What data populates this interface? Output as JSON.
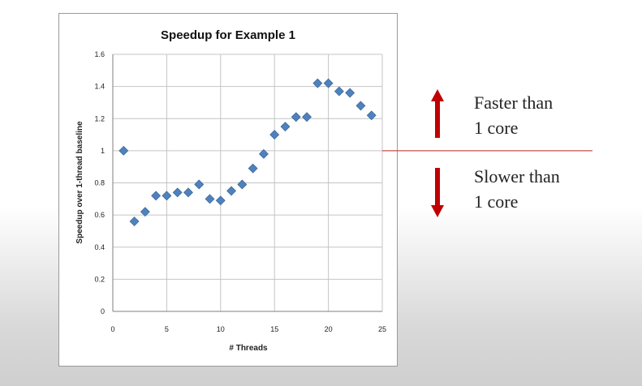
{
  "chart_data": {
    "type": "scatter",
    "title": "Speedup for Example 1",
    "xlabel": "# Threads",
    "ylabel": "Speedup over 1-thread baseline",
    "xlim": [
      0,
      25
    ],
    "ylim": [
      0,
      1.6
    ],
    "x_ticks": [
      "0",
      "5",
      "10",
      "15",
      "20",
      "25"
    ],
    "y_ticks": [
      "0",
      "0.2",
      "0.4",
      "0.6",
      "0.8",
      "1",
      "1.2",
      "1.4",
      "1.6"
    ],
    "grid": true,
    "legend": "none",
    "series": [
      {
        "marker": "diamond",
        "color": "#4f81bd",
        "x": [
          1,
          2,
          3,
          4,
          5,
          6,
          7,
          8,
          9,
          10,
          11,
          12,
          13,
          14,
          15,
          16,
          17,
          18,
          19,
          20,
          21,
          22,
          23,
          24
        ],
        "y": [
          1.0,
          0.56,
          0.62,
          0.72,
          0.72,
          0.74,
          0.74,
          0.79,
          0.7,
          0.69,
          0.75,
          0.79,
          0.89,
          0.98,
          1.1,
          1.15,
          1.21,
          1.21,
          1.42,
          1.42,
          1.37,
          1.36,
          1.28,
          1.22
        ]
      }
    ],
    "reference_line": {
      "y": 1,
      "color": "#c0504d"
    }
  },
  "annotations": {
    "faster": {
      "line1": "Faster than",
      "line2": "1 core",
      "arrow": "up-arrow",
      "color": "#c00000"
    },
    "slower": {
      "line1": "Slower than",
      "line2": "1 core",
      "arrow": "down-arrow",
      "color": "#c00000"
    }
  }
}
